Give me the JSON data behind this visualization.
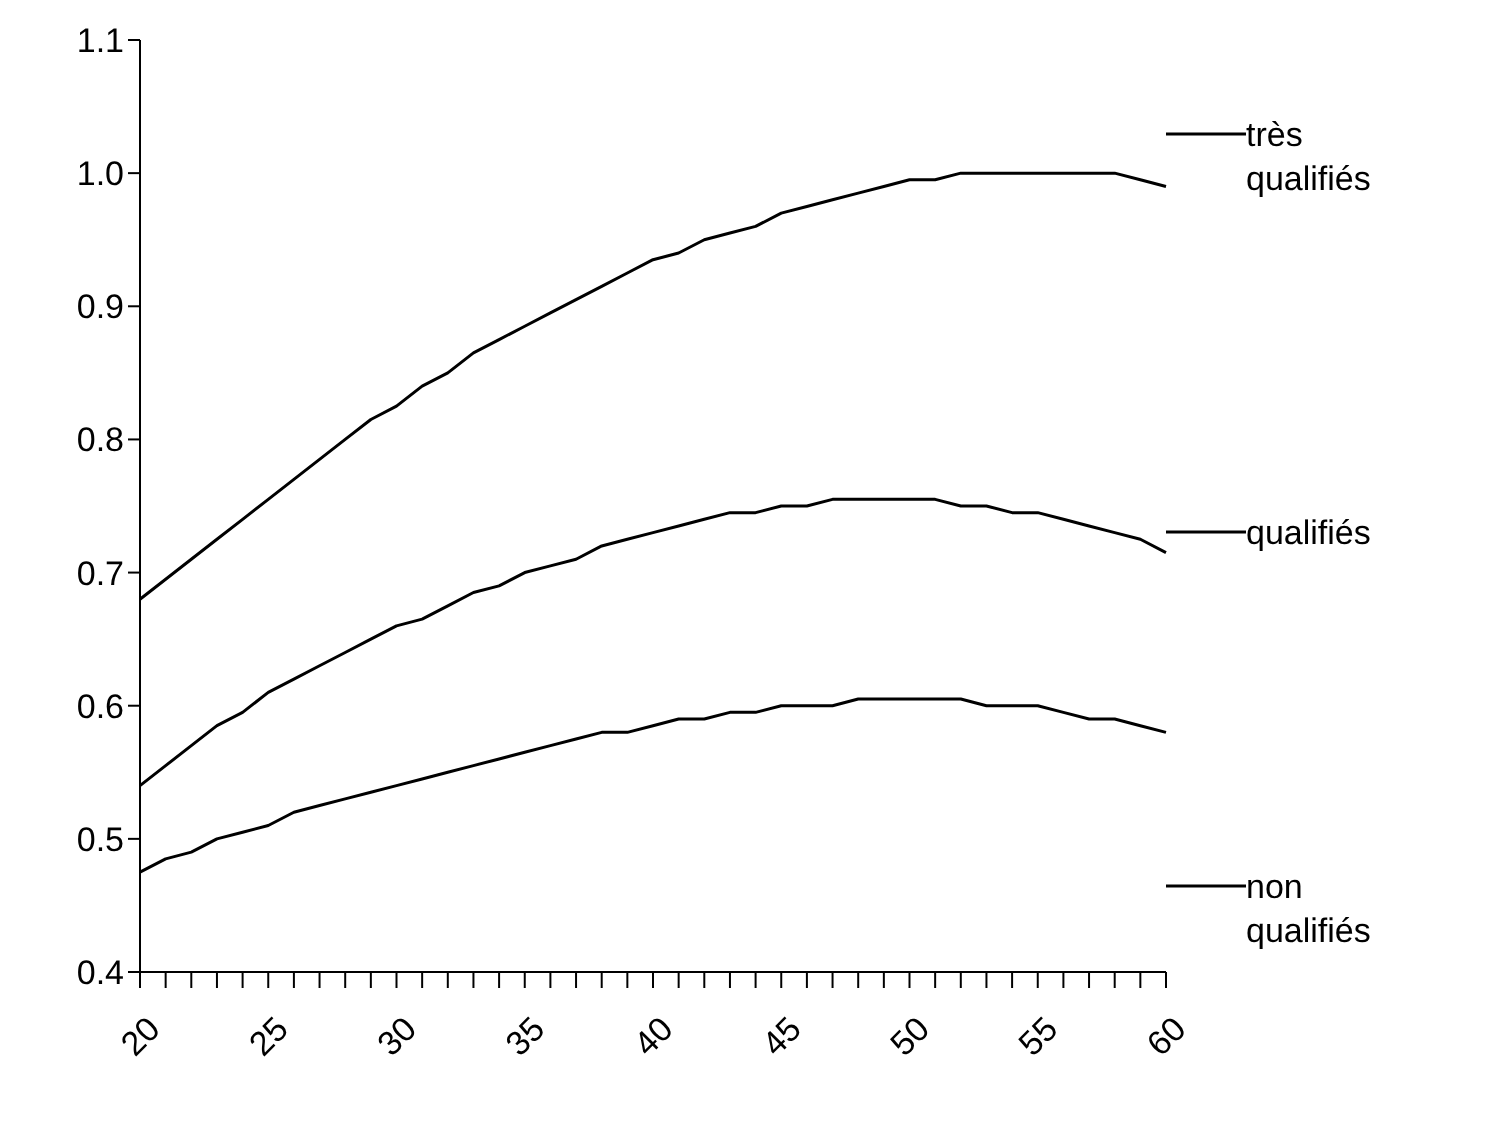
{
  "chart_data": {
    "type": "line",
    "categories": [
      "20",
      null,
      null,
      null,
      null,
      "25",
      null,
      null,
      null,
      null,
      "30",
      null,
      null,
      null,
      null,
      "35",
      null,
      null,
      null,
      null,
      "40",
      null,
      null,
      null,
      null,
      "45",
      null,
      null,
      null,
      null,
      "50",
      null,
      null,
      null,
      null,
      "55",
      null,
      null,
      null,
      null,
      "60"
    ],
    "series": [
      {
        "name": "très qualifiés",
        "color": "#000000",
        "values": [
          0.68,
          0.695,
          0.71,
          0.725,
          0.74,
          0.755,
          0.77,
          0.785,
          0.8,
          0.815,
          0.825,
          0.84,
          0.85,
          0.865,
          0.875,
          0.885,
          0.895,
          0.905,
          0.915,
          0.925,
          0.935,
          0.94,
          0.95,
          0.955,
          0.96,
          0.97,
          0.975,
          0.98,
          0.985,
          0.99,
          0.995,
          0.995,
          1.0,
          1.0,
          1.0,
          1.0,
          1.0,
          1.0,
          1.0,
          0.995,
          0.99
        ]
      },
      {
        "name": "qualifiés",
        "color": "#000000",
        "values": [
          0.54,
          0.555,
          0.57,
          0.585,
          0.595,
          0.61,
          0.62,
          0.63,
          0.64,
          0.65,
          0.66,
          0.665,
          0.675,
          0.685,
          0.69,
          0.7,
          0.705,
          0.71,
          0.72,
          0.725,
          0.73,
          0.735,
          0.74,
          0.745,
          0.745,
          0.75,
          0.75,
          0.755,
          0.755,
          0.755,
          0.755,
          0.755,
          0.75,
          0.75,
          0.745,
          0.745,
          0.74,
          0.735,
          0.73,
          0.725,
          0.715
        ]
      },
      {
        "name": "non qualifiés",
        "color": "#000000",
        "values": [
          0.475,
          0.485,
          0.49,
          0.5,
          0.505,
          0.51,
          0.52,
          0.525,
          0.53,
          0.535,
          0.54,
          0.545,
          0.55,
          0.555,
          0.56,
          0.565,
          0.57,
          0.575,
          0.58,
          0.58,
          0.585,
          0.59,
          0.59,
          0.595,
          0.595,
          0.6,
          0.6,
          0.6,
          0.605,
          0.605,
          0.605,
          0.605,
          0.605,
          0.6,
          0.6,
          0.6,
          0.595,
          0.59,
          0.59,
          0.585,
          0.58
        ]
      }
    ],
    "ylim": [
      0.4,
      1.1
    ],
    "yticks": [
      {
        "value": 0.4,
        "label": "0.4"
      },
      {
        "value": 0.5,
        "label": "0.5"
      },
      {
        "value": 0.6,
        "label": "0.6"
      },
      {
        "value": 0.7,
        "label": "0.7"
      },
      {
        "value": 0.8,
        "label": "0.8"
      },
      {
        "value": 0.9,
        "label": "0.9"
      },
      {
        "value": 1.0,
        "label": "1.0"
      },
      {
        "value": 1.1,
        "label": "1.1"
      }
    ],
    "grid": false,
    "legend": "right",
    "marker": "none",
    "line_style": "solid"
  }
}
